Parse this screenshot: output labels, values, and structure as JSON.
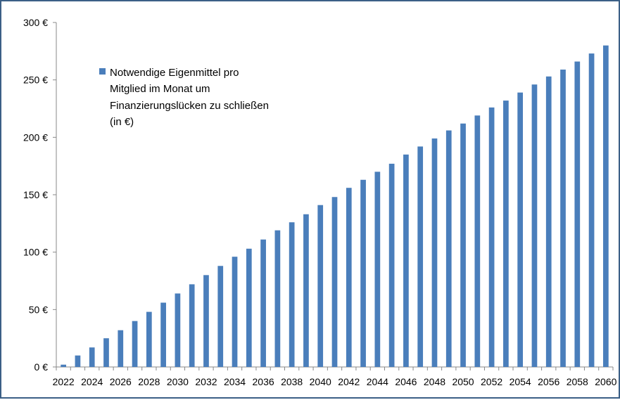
{
  "chart_data": {
    "type": "bar",
    "title": "",
    "xlabel": "",
    "ylabel": "",
    "ylim": [
      0,
      300
    ],
    "y_ticks": [
      "0 €",
      "50 €",
      "100 €",
      "150 €",
      "200 €",
      "250 €",
      "300 €"
    ],
    "x_tick_labels": [
      "2022",
      "2024",
      "2026",
      "2028",
      "2030",
      "2032",
      "2034",
      "2036",
      "2038",
      "2040",
      "2042",
      "2044",
      "2046",
      "2048",
      "2050",
      "2052",
      "2054",
      "2056",
      "2058",
      "2060"
    ],
    "grid": false,
    "legend_position": "top-left",
    "legend_lines": [
      "Notwendige Eigenmittel pro",
      "Mitglied im Monat um",
      "Finanzierungslücken  zu schließen",
      "(in €)"
    ],
    "bar_color": "#4a7ebb",
    "categories": [
      "2022",
      "2023",
      "2024",
      "2025",
      "2026",
      "2027",
      "2028",
      "2029",
      "2030",
      "2031",
      "2032",
      "2033",
      "2034",
      "2035",
      "2036",
      "2037",
      "2038",
      "2039",
      "2040",
      "2041",
      "2042",
      "2043",
      "2044",
      "2045",
      "2046",
      "2047",
      "2048",
      "2049",
      "2050",
      "2051",
      "2052",
      "2053",
      "2054",
      "2055",
      "2056",
      "2057",
      "2058",
      "2059",
      "2060"
    ],
    "series": [
      {
        "name": "Notwendige Eigenmittel pro Mitglied im Monat um Finanzierungslücken zu schließen (in €)",
        "values": [
          2,
          10,
          17,
          25,
          32,
          40,
          48,
          56,
          64,
          72,
          80,
          88,
          96,
          103,
          111,
          119,
          126,
          133,
          141,
          148,
          156,
          163,
          170,
          177,
          185,
          192,
          199,
          206,
          212,
          219,
          226,
          232,
          239,
          246,
          253,
          259,
          266,
          273,
          280
        ]
      }
    ]
  }
}
